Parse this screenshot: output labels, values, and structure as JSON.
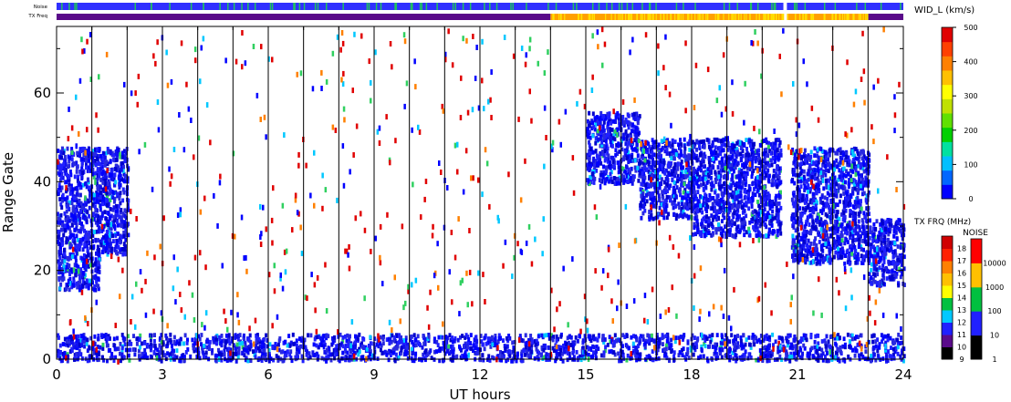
{
  "status_strips": {
    "noise_label": "Noise",
    "txfreq_label": "TX Freq"
  },
  "chart_data": {
    "type": "heatmap",
    "title": "",
    "xlabel": "UT hours",
    "ylabel": "Range Gate",
    "xlim": [
      0,
      24
    ],
    "ylim": [
      0,
      75
    ],
    "x_ticks": [
      "0",
      "3",
      "6",
      "9",
      "12",
      "15",
      "18",
      "21",
      "24"
    ],
    "y_ticks": [
      "0",
      "20",
      "40",
      "60"
    ],
    "hour_gridlines": true,
    "scan_lines_hours": [
      1.0,
      2.0,
      3.0,
      4.0,
      5.0,
      6.0,
      7.0,
      8.0,
      9.0,
      10.0,
      11.0,
      12.0,
      13.0,
      14.0,
      15.0,
      16.0,
      17.0,
      18.0,
      19.0,
      20.0,
      21.0,
      22.0,
      23.0
    ],
    "scatter_regions": [
      {
        "x": [
          0.0,
          1.2
        ],
        "gates": [
          16,
          48
        ],
        "value_kms": 60,
        "description_color": "blue"
      },
      {
        "x": [
          1.2,
          2.0
        ],
        "gates": [
          24,
          48
        ],
        "value_kms": 60,
        "description_color": "blue"
      },
      {
        "x": [
          15.0,
          16.5
        ],
        "gates": [
          40,
          56
        ],
        "value_kms": 60,
        "description_color": "blue"
      },
      {
        "x": [
          16.5,
          18.0
        ],
        "gates": [
          32,
          50
        ],
        "value_kms": 60,
        "description_color": "blue"
      },
      {
        "x": [
          18.0,
          20.5
        ],
        "gates": [
          28,
          50
        ],
        "value_kms": 60,
        "description_color": "blue"
      },
      {
        "x": [
          20.8,
          23.0
        ],
        "gates": [
          22,
          48
        ],
        "value_kms": 60,
        "description_color": "blue"
      },
      {
        "x": [
          23.0,
          24.0
        ],
        "gates": [
          17,
          32
        ],
        "value_kms": 60,
        "description_color": "blue"
      },
      {
        "x": [
          0.0,
          24.0
        ],
        "gates": [
          0,
          6
        ],
        "value_kms": 60,
        "description_color": "blue"
      }
    ],
    "width_colorbar": {
      "label": "WID_L (km/s)",
      "ticks": [
        "0",
        "100",
        "200",
        "300",
        "400",
        "500"
      ],
      "range": [
        0,
        500
      ],
      "colors": [
        "#0000ff",
        "#0066ff",
        "#00bfff",
        "#00e0a0",
        "#00d000",
        "#60e000",
        "#c0e000",
        "#ffff00",
        "#ffc000",
        "#ff8000",
        "#ff4000",
        "#e00000"
      ]
    },
    "txfreq_colorbar": {
      "label": "TX FRQ (MHz)",
      "ticks": [
        "9",
        "10",
        "11",
        "12",
        "13",
        "14",
        "15",
        "16",
        "17",
        "18"
      ],
      "colors": [
        "#000000",
        "#5a0a8a",
        "#2020ff",
        "#00c8ff",
        "#00c040",
        "#ffff00",
        "#ffc000",
        "#ff8000",
        "#ff2000",
        "#d00000"
      ]
    },
    "noise_colorbar": {
      "label": "NOISE",
      "ticks": [
        "1",
        "10",
        "100",
        "1000",
        "10000"
      ],
      "colors": [
        "#000000",
        "#2020ff",
        "#00c040",
        "#ffc000",
        "#ff0000"
      ]
    },
    "noise_strip": {
      "base_color": "#3030ff",
      "accent_color": "#20c060",
      "gap_hours": [
        20.6,
        20.7
      ]
    },
    "txfreq_strip": {
      "segments": [
        {
          "x": [
            0.0,
            14.0
          ],
          "mhz": 10,
          "color": "#5a0a8a"
        },
        {
          "x": [
            14.0,
            23.0
          ],
          "mhz": 15,
          "color": "#ffa000"
        },
        {
          "x": [
            23.0,
            24.0
          ],
          "mhz": 10,
          "color": "#5a0a8a"
        }
      ],
      "gap_hours": [
        20.6,
        20.7
      ]
    }
  }
}
